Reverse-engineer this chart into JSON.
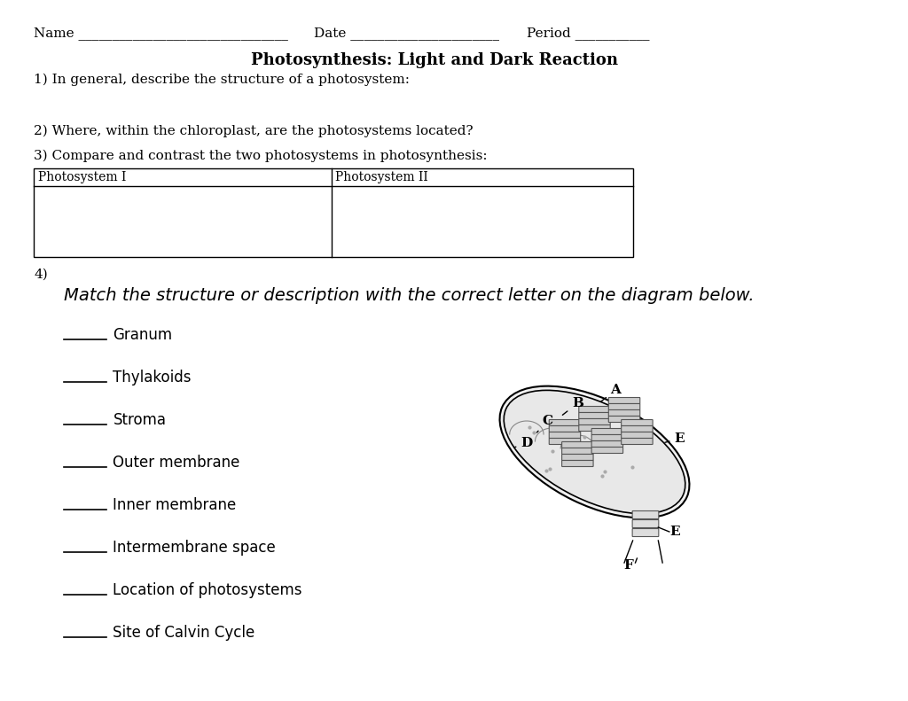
{
  "bg_color": "#ffffff",
  "title": "Photosynthesis: Light and Dark Reaction",
  "header_line": "Name _______________________________       Date ______________________       Period ___________",
  "q1": "1) In general, describe the structure of a photosystem:",
  "q2": "2) Where, within the chloroplast, are the photosystems located?",
  "q3": "3) Compare and contrast the two photosystems in photosynthesis:",
  "table_col1": "Photosystem I",
  "table_col2": "Photosystem II",
  "q4_label": "4)",
  "q4_instruction": "Match the structure or description with the correct letter on the diagram below.",
  "list_items": [
    "Granum",
    "Thylakoids",
    "Stroma",
    "Outer membrane",
    "Inner membrane",
    "Intermembrane space",
    "Location of photosystems",
    "Site of Calvin Cycle"
  ],
  "font_size_header": 11,
  "font_size_title": 13,
  "font_size_q": 11,
  "font_size_list": 12,
  "font_size_q4": 14
}
